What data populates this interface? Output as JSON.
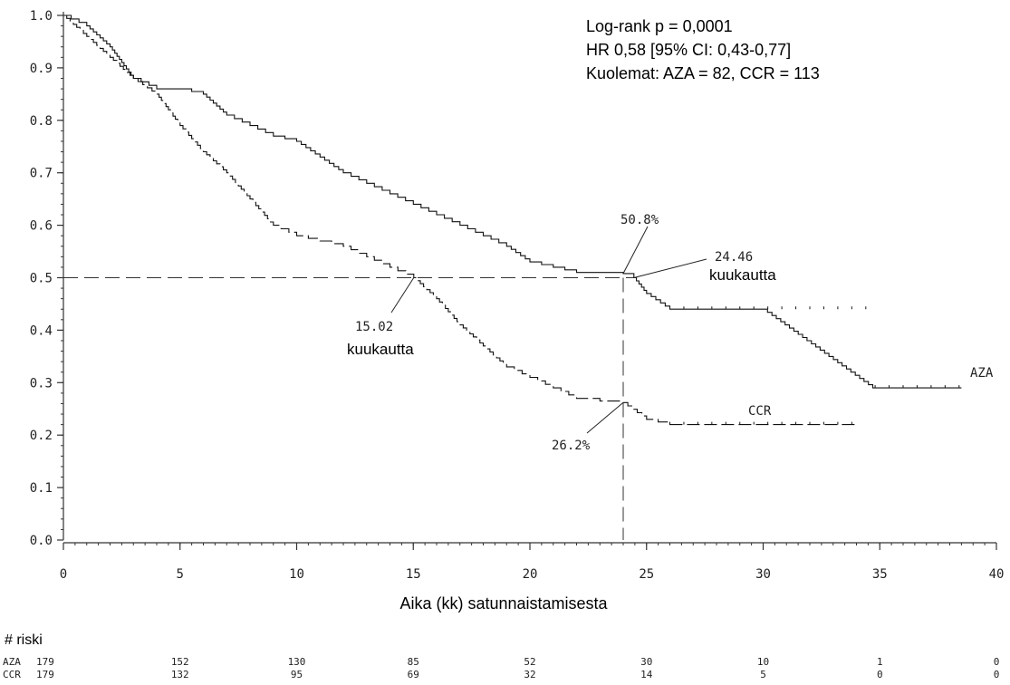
{
  "chart_data": {
    "type": "line",
    "xlabel": "Aika (kk) satunnaistamisesta",
    "ylabel": "",
    "xlim": [
      0,
      40
    ],
    "ylim": [
      0.0,
      1.0
    ],
    "x_ticks": [
      "0",
      "5",
      "10",
      "15",
      "20",
      "25",
      "30",
      "35",
      "40"
    ],
    "y_ticks": [
      "0.0",
      "0.1",
      "0.2",
      "0.3",
      "0.4",
      "0.5",
      "0.6",
      "0.7",
      "0.8",
      "0.9",
      "1.0"
    ],
    "grid": false,
    "stats_text": [
      "Log-rank p = 0,0001",
      "HR 0,58 [95% CI: 0,43-0,77]",
      "Kuolemat: AZA = 82, CCR = 113"
    ],
    "series": [
      {
        "name": "AZA",
        "line_style": "solid",
        "x": [
          0,
          1,
          2,
          3,
          4,
          5,
          6,
          7,
          8,
          9,
          10,
          11,
          12,
          13,
          14,
          15,
          16,
          17,
          18,
          19,
          20,
          21,
          22,
          23,
          24,
          24.46,
          25,
          26,
          30,
          34.7,
          38.5
        ],
        "y": [
          1.0,
          0.98,
          0.94,
          0.88,
          0.86,
          0.86,
          0.85,
          0.81,
          0.79,
          0.77,
          0.76,
          0.73,
          0.7,
          0.68,
          0.66,
          0.64,
          0.62,
          0.6,
          0.58,
          0.56,
          0.53,
          0.52,
          0.51,
          0.51,
          0.508,
          0.5,
          0.47,
          0.44,
          0.44,
          0.29,
          0.29
        ]
      },
      {
        "name": "CCR",
        "line_style": "dashed",
        "x": [
          0,
          1,
          2,
          3,
          4,
          5,
          6,
          7,
          8,
          9,
          10,
          11,
          12,
          13,
          14,
          15.02,
          16,
          17,
          18,
          19,
          20,
          21,
          22,
          23,
          24,
          25,
          26,
          30,
          34
        ],
        "y": [
          1.0,
          0.96,
          0.92,
          0.88,
          0.85,
          0.79,
          0.74,
          0.7,
          0.65,
          0.6,
          0.58,
          0.57,
          0.56,
          0.54,
          0.52,
          0.5,
          0.46,
          0.41,
          0.37,
          0.33,
          0.31,
          0.29,
          0.27,
          0.265,
          0.262,
          0.23,
          0.22,
          0.22,
          0.22
        ]
      }
    ],
    "reference_lines": {
      "horizontal_y": 0.5,
      "vertical_x": 24
    },
    "annotations": [
      {
        "id": "aza_median",
        "x": 24.46,
        "y": 0.5,
        "value": "24.46",
        "unit": "kuukautta"
      },
      {
        "id": "ccr_median",
        "x": 15.02,
        "y": 0.5,
        "value": "15.02",
        "unit": "kuukautta"
      },
      {
        "id": "aza_24",
        "x": 24,
        "y": 0.508,
        "value": "50.8%"
      },
      {
        "id": "ccr_24",
        "x": 24,
        "y": 0.262,
        "value": "26.2%"
      }
    ],
    "series_labels": [
      "AZA",
      "CCR"
    ],
    "risk_table": {
      "title": "# riski",
      "times": [
        0,
        5,
        10,
        15,
        20,
        25,
        30,
        35,
        40
      ],
      "rows": [
        {
          "label": "AZA",
          "values": [
            "179",
            "152",
            "130",
            "85",
            "52",
            "30",
            "10",
            "1",
            "0"
          ]
        },
        {
          "label": "CCR",
          "values": [
            "179",
            "132",
            "95",
            "69",
            "32",
            "14",
            "5",
            "0",
            "0"
          ]
        }
      ]
    }
  }
}
